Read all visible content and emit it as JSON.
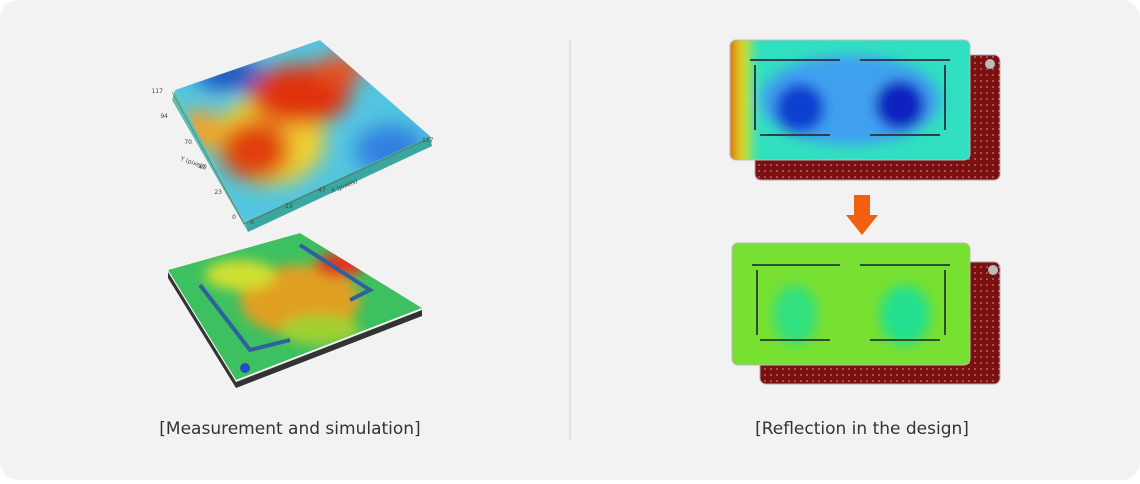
{
  "left": {
    "caption": "[Measurement and simulation]",
    "surface_plot": {
      "y_axis_label": "Y (pixels)",
      "x_axis_label": "X (pixels)",
      "y_ticks": [
        117,
        94,
        70,
        47,
        23,
        0
      ],
      "x_ticks": [
        0,
        23,
        47,
        117
      ]
    }
  },
  "right": {
    "caption": "[Reflection in the design]"
  }
}
